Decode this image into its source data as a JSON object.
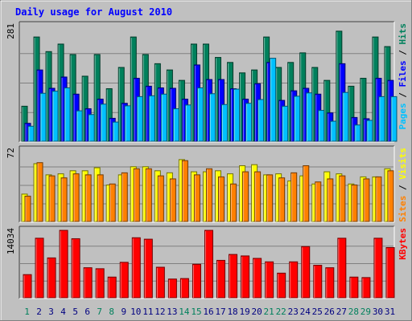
{
  "title": "Daily usage for August 2010",
  "colors": {
    "background": "#ffffff",
    "panel": "#c0c0c0",
    "frame": "#606060",
    "title": "#0000ff",
    "hits": "#00805c",
    "files": "#0000ff",
    "pages": "#00c0ff",
    "visits": "#ffff00",
    "sites": "#ff8000",
    "kbytes": "#ff0000",
    "weekend_label": "#00805c",
    "weekday_label": "#000080"
  },
  "chart_data": [
    {
      "type": "bar",
      "name": "hits-files-pages",
      "ylabel_parts": [
        "Pages",
        "Files",
        "Hits"
      ],
      "ylabel_colors": [
        "#00c0ff",
        "#0000ff",
        "#00805c"
      ],
      "ymax_label": "281",
      "ylim": [
        0,
        281
      ],
      "categories": [
        "1",
        "2",
        "3",
        "4",
        "5",
        "6",
        "7",
        "8",
        "9",
        "10",
        "11",
        "12",
        "13",
        "14",
        "15",
        "16",
        "17",
        "18",
        "19",
        "20",
        "21",
        "22",
        "23",
        "24",
        "25",
        "26",
        "27",
        "28",
        "29",
        "30",
        "31"
      ],
      "series": [
        {
          "name": "Hits",
          "values": [
            84,
            250,
            215,
            233,
            208,
            156,
            208,
            126,
            177,
            250,
            208,
            186,
            171,
            146,
            233,
            233,
            201,
            189,
            164,
            171,
            250,
            177,
            189,
            212,
            177,
            146,
            264,
            132,
            151,
            250,
            227
          ]
        },
        {
          "name": "Files",
          "values": [
            43,
            171,
            127,
            154,
            113,
            78,
            101,
            55,
            91,
            151,
            132,
            128,
            127,
            101,
            183,
            148,
            148,
            126,
            101,
            138,
            189,
            98,
            121,
            127,
            113,
            68,
            186,
            57,
            54,
            151,
            146
          ]
        },
        {
          "name": "Pages",
          "values": [
            36,
            115,
            120,
            128,
            73,
            64,
            89,
            46,
            85,
            107,
            109,
            113,
            78,
            87,
            128,
            114,
            88,
            125,
            91,
            100,
            199,
            84,
            108,
            116,
            74,
            48,
            117,
            39,
            50,
            107,
            107
          ]
        }
      ]
    },
    {
      "type": "bar",
      "name": "visits-sites",
      "ylabel_parts": [
        "Sites",
        "Visits"
      ],
      "ylabel_colors": [
        "#ff8000",
        "#ffff00"
      ],
      "ymax_label": "72",
      "ylim": [
        0,
        72
      ],
      "categories": [
        "1",
        "2",
        "3",
        "4",
        "5",
        "6",
        "7",
        "8",
        "9",
        "10",
        "11",
        "12",
        "13",
        "14",
        "15",
        "16",
        "17",
        "18",
        "19",
        "20",
        "21",
        "22",
        "23",
        "24",
        "25",
        "26",
        "27",
        "28",
        "29",
        "30",
        "31"
      ],
      "series": [
        {
          "name": "Visits",
          "values": [
            27,
            57,
            46,
            47,
            50,
            50,
            53,
            36,
            46,
            54,
            54,
            50,
            48,
            61,
            49,
            49,
            50,
            47,
            55,
            56,
            46,
            47,
            40,
            45,
            37,
            49,
            47,
            37,
            44,
            44,
            52
          ]
        },
        {
          "name": "Sites",
          "values": [
            25,
            58,
            45,
            43,
            47,
            46,
            46,
            37,
            48,
            52,
            52,
            45,
            42,
            60,
            46,
            52,
            44,
            37,
            49,
            49,
            46,
            43,
            48,
            55,
            39,
            42,
            45,
            36,
            42,
            44,
            50
          ]
        }
      ]
    },
    {
      "type": "bar",
      "name": "kbytes",
      "ylabel_parts": [
        "KBytes"
      ],
      "ylabel_colors": [
        "#ff0000"
      ],
      "ymax_label": "14034",
      "ylim": [
        0,
        14034
      ],
      "categories": [
        "1",
        "2",
        "3",
        "4",
        "5",
        "6",
        "7",
        "8",
        "9",
        "10",
        "11",
        "12",
        "13",
        "14",
        "15",
        "16",
        "17",
        "18",
        "19",
        "20",
        "21",
        "22",
        "23",
        "24",
        "25",
        "26",
        "27",
        "28",
        "29",
        "30",
        "31"
      ],
      "series": [
        {
          "name": "KBytes",
          "values": [
            4700,
            12100,
            8100,
            13700,
            12000,
            6100,
            5900,
            4200,
            7200,
            12200,
            11900,
            6200,
            3800,
            3900,
            6800,
            13700,
            7600,
            8800,
            8500,
            8000,
            7300,
            5000,
            7300,
            10400,
            6600,
            6100,
            12100,
            4200,
            4100,
            12100,
            10200
          ]
        }
      ]
    }
  ]
}
